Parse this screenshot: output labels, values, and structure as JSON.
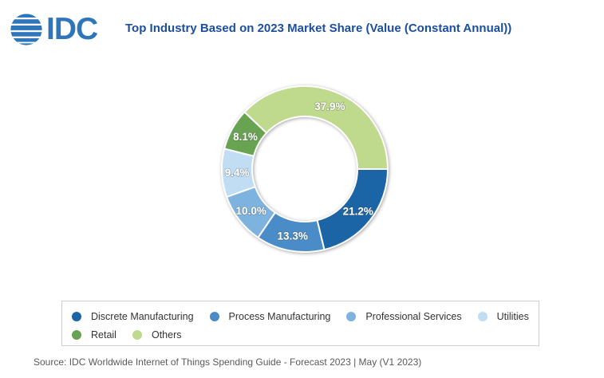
{
  "header": {
    "logo_text": "IDC",
    "title": "Top Industry Based on 2023 Market Share (Value (Constant Annual))"
  },
  "chart_data": {
    "type": "pie",
    "subtype": "donut",
    "title": "Top Industry Based on 2023 Market Share (Value (Constant Annual))",
    "units": "percent of market share value",
    "start_angle_deg": 90,
    "inner_radius_ratio": 0.63,
    "legend_position": "bottom",
    "slices": [
      {
        "label": "Discrete Manufacturing",
        "value": 21.2,
        "display": "21.2%",
        "color": "#1b64a6"
      },
      {
        "label": "Process Manufacturing",
        "value": 13.3,
        "display": "13.3%",
        "color": "#4a8cc7"
      },
      {
        "label": "Professional Services",
        "value": 10.0,
        "display": "10.0%",
        "color": "#7eb3e0"
      },
      {
        "label": "Utilities",
        "value": 9.4,
        "display": "9.4%",
        "color": "#c0ddf4"
      },
      {
        "label": "Retail",
        "value": 8.1,
        "display": "8.1%",
        "color": "#68a351"
      },
      {
        "label": "Others",
        "value": 37.9,
        "display": "37.9%",
        "color": "#bfd98d"
      }
    ]
  },
  "footer": {
    "source": "Source: IDC Worldwide Internet of Things Spending Guide - Forecast 2023 | May (V1 2023)"
  }
}
